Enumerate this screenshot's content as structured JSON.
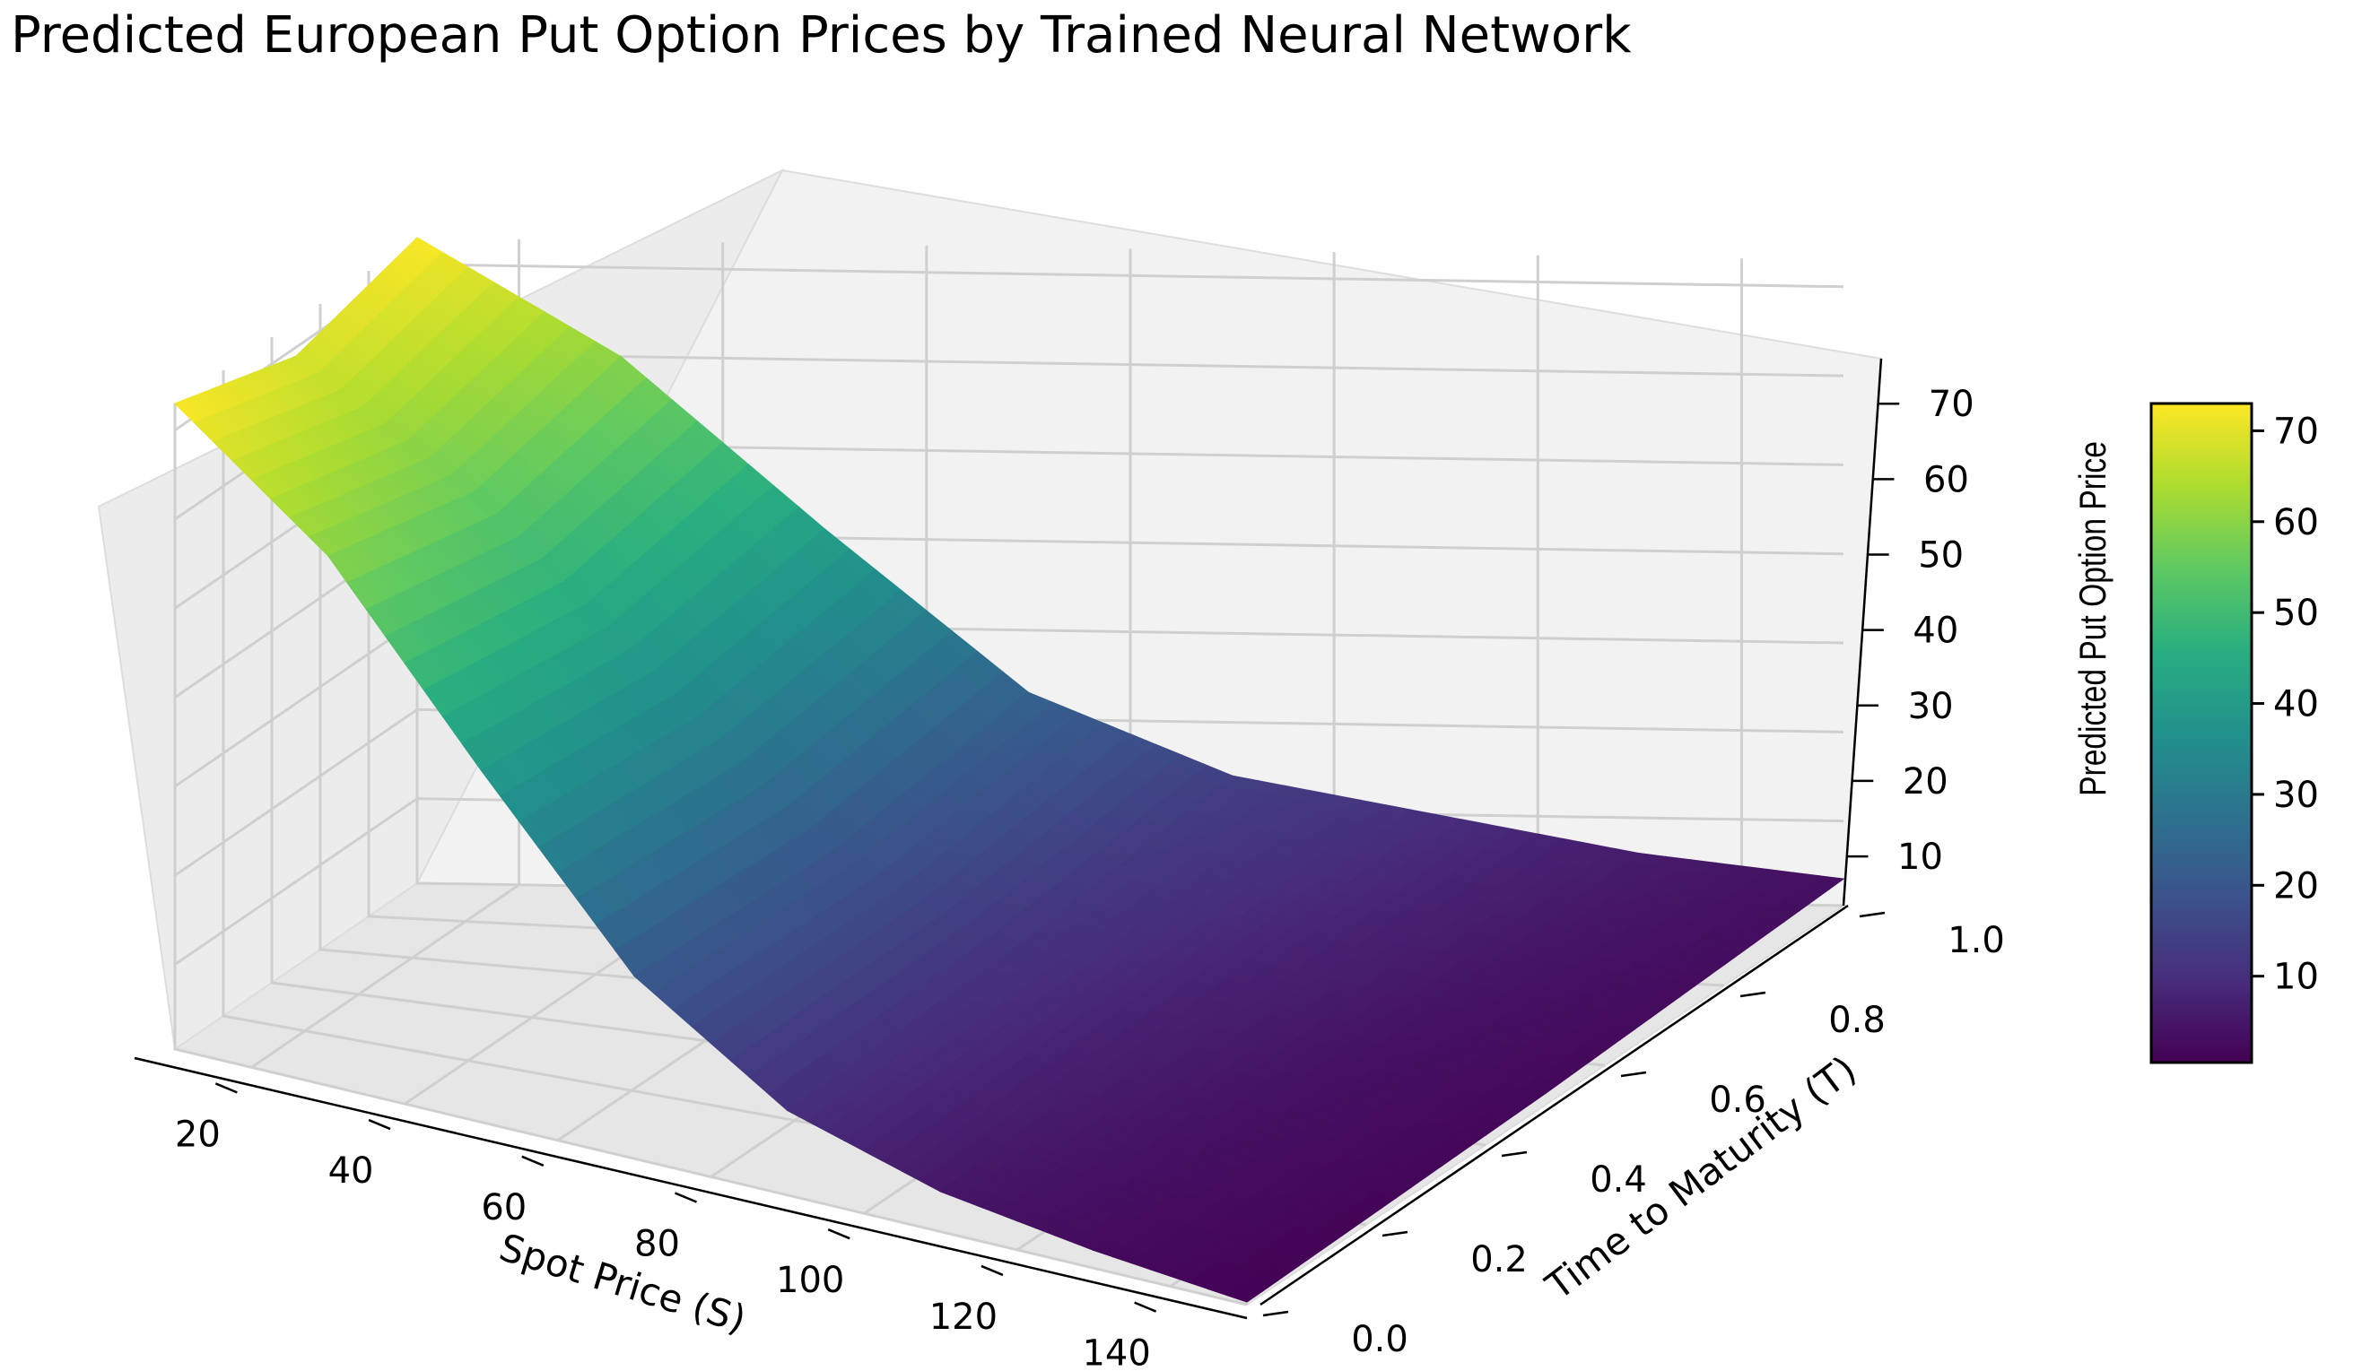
{
  "chart_data": {
    "type": "surface3d",
    "title": "Predicted European Put Option Prices by Trained Neural Network",
    "xlabel": "Spot Price (S)",
    "ylabel": "Time to Maturity (T)",
    "zlabel": "Predicted Put Option Price",
    "x_ticks": [
      "20",
      "40",
      "60",
      "80",
      "100",
      "120",
      "140"
    ],
    "y_ticks": [
      "0.0",
      "0.2",
      "0.4",
      "0.6",
      "0.8",
      "1.0"
    ],
    "z_ticks": [
      "10",
      "20",
      "30",
      "40",
      "50",
      "60",
      "70"
    ],
    "colorbar_ticks": [
      "10",
      "20",
      "30",
      "40",
      "50",
      "60",
      "70"
    ],
    "xlim": [
      10,
      150
    ],
    "ylim": [
      0,
      1
    ],
    "zlim": [
      0.5,
      73
    ],
    "colormap": "viridis",
    "grid": true,
    "surface": {
      "note_free_sample_points": true,
      "S": [
        10,
        30,
        50,
        70,
        90,
        110,
        130,
        150
      ],
      "T": [
        0.0,
        0.5,
        1.0
      ],
      "price": [
        [
          73,
          69,
          73
        ],
        [
          60,
          56,
          60
        ],
        [
          40,
          38,
          41
        ],
        [
          21,
          20,
          23
        ],
        [
          10,
          11,
          14
        ],
        [
          5,
          7,
          10
        ],
        [
          2.5,
          4,
          6
        ],
        [
          0.8,
          1.8,
          3.5
        ]
      ]
    }
  }
}
